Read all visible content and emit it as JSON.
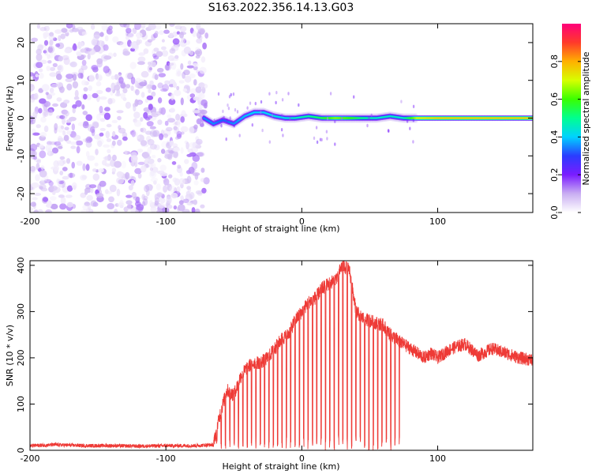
{
  "figure": {
    "title": "S163.2022.356.14.13.G03"
  },
  "colors": {
    "snr_line": "#ee3a36",
    "frame": "#000000",
    "colormap": [
      "#ffffff",
      "#c9aef2",
      "#7a1cff",
      "#2a3cff",
      "#00d2ff",
      "#00ff90",
      "#39ff00",
      "#d7ff00",
      "#ffb000",
      "#ff3a2a",
      "#ff007a"
    ]
  },
  "chart_data": [
    {
      "type": "heatmap",
      "xlabel": "Height of straight line (km)",
      "ylabel": "Frequency (Hz)",
      "xlim": [
        -200,
        170
      ],
      "ylim": [
        -25,
        25
      ],
      "xticks": [
        -200,
        -100,
        0,
        100
      ],
      "xtick_labels": [
        "-200",
        "-100",
        "0",
        "100"
      ],
      "yticks": [
        -20,
        -10,
        0,
        10,
        20
      ],
      "ytick_labels": [
        "-20",
        "-10",
        "0",
        "10",
        "20"
      ],
      "colorbar": {
        "label": "Normalized spectral amplitude",
        "range": [
          0,
          1
        ],
        "ticks": [
          0,
          0.2,
          0.4,
          0.6,
          0.8
        ],
        "tick_labels": [
          "0.0",
          "0.2",
          "0.4",
          "0.6",
          "0.8"
        ]
      },
      "noise_region_x": [
        -200,
        -70
      ],
      "signal_trace": [
        {
          "x": -72,
          "y": 0.0,
          "amp": 0.35
        },
        {
          "x": -65,
          "y": -1.5,
          "amp": 0.35
        },
        {
          "x": -58,
          "y": -0.5,
          "amp": 0.32
        },
        {
          "x": -50,
          "y": -1.5,
          "amp": 0.35
        },
        {
          "x": -42,
          "y": 0.5,
          "amp": 0.38
        },
        {
          "x": -35,
          "y": 1.5,
          "amp": 0.4
        },
        {
          "x": -28,
          "y": 1.5,
          "amp": 0.4
        },
        {
          "x": -20,
          "y": 0.5,
          "amp": 0.42
        },
        {
          "x": -12,
          "y": 0.0,
          "amp": 0.42
        },
        {
          "x": -5,
          "y": 0.0,
          "amp": 0.45
        },
        {
          "x": 5,
          "y": 0.5,
          "amp": 0.48
        },
        {
          "x": 15,
          "y": 0.0,
          "amp": 0.55
        },
        {
          "x": 25,
          "y": 0.0,
          "amp": 0.65
        },
        {
          "x": 35,
          "y": 0.0,
          "amp": 0.6
        },
        {
          "x": 45,
          "y": 0.0,
          "amp": 0.5
        },
        {
          "x": 55,
          "y": 0.0,
          "amp": 0.45
        },
        {
          "x": 65,
          "y": 0.5,
          "amp": 0.45
        },
        {
          "x": 75,
          "y": 0.0,
          "amp": 0.45
        },
        {
          "x": 85,
          "y": 0.0,
          "amp": 0.7
        },
        {
          "x": 100,
          "y": 0.0,
          "amp": 0.75
        },
        {
          "x": 120,
          "y": 0.0,
          "amp": 0.75
        },
        {
          "x": 140,
          "y": 0.0,
          "amp": 0.75
        },
        {
          "x": 160,
          "y": 0.0,
          "amp": 0.75
        },
        {
          "x": 170,
          "y": 0.0,
          "amp": 0.75
        }
      ]
    },
    {
      "type": "line",
      "xlabel": "Height of straight line (km)",
      "ylabel": "SNR (10 * v/v)",
      "xlim": [
        -200,
        170
      ],
      "ylim": [
        0,
        410
      ],
      "xticks": [
        -200,
        -100,
        0,
        100
      ],
      "xtick_labels": [
        "-200",
        "-100",
        "0",
        "100"
      ],
      "yticks": [
        0,
        100,
        200,
        300,
        400
      ],
      "ytick_labels": [
        "0",
        "100",
        "200",
        "300",
        "400"
      ],
      "series": [
        {
          "x": [
            -200,
            -180,
            -160,
            -140,
            -120,
            -100,
            -80,
            -65,
            -60,
            -55,
            -50,
            -45,
            -40,
            -35,
            -30,
            -25,
            -20,
            -15,
            -10,
            -5,
            0,
            5,
            10,
            15,
            20,
            25,
            30,
            35,
            40,
            45,
            50,
            55,
            60,
            65,
            70,
            72,
            80,
            90,
            95,
            100,
            110,
            120,
            130,
            140,
            150,
            160,
            170
          ],
          "y": [
            10,
            12,
            10,
            10,
            9,
            10,
            10,
            12,
            80,
            130,
            120,
            160,
            180,
            190,
            190,
            200,
            220,
            240,
            250,
            280,
            300,
            320,
            330,
            350,
            360,
            370,
            400,
            390,
            300,
            285,
            280,
            275,
            270,
            250,
            240,
            235,
            220,
            200,
            210,
            200,
            220,
            230,
            205,
            220,
            210,
            200,
            195
          ]
        }
      ]
    }
  ]
}
